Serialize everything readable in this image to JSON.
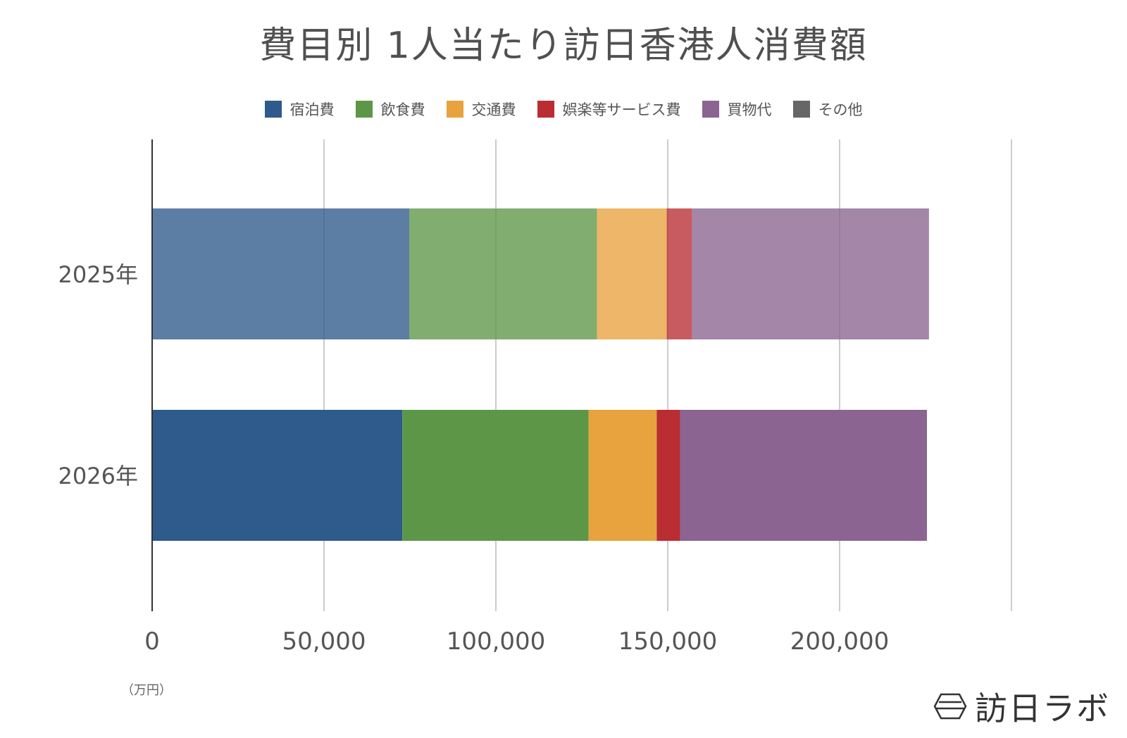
{
  "chart_data": {
    "type": "bar",
    "orientation": "horizontal",
    "stacked": true,
    "title": "費目別 1人当たり訪日香港人消費額",
    "categories": [
      "2025年",
      "2026年"
    ],
    "series": [
      {
        "name": "宿泊費",
        "values": [
          74800,
          72800
        ],
        "color": "#2e5a8c"
      },
      {
        "name": "飲食費",
        "values": [
          54600,
          54200
        ],
        "color": "#5e9648"
      },
      {
        "name": "交通費",
        "values": [
          20300,
          19800
        ],
        "color": "#e8a23e"
      },
      {
        "name": "娯楽等サービス費",
        "values": [
          7400,
          6800
        ],
        "color": "#b92d33"
      },
      {
        "name": "買物代",
        "values": [
          68900,
          71800
        ],
        "color": "#8b6491"
      },
      {
        "name": "その他",
        "values": [
          0,
          0
        ],
        "color": "#666666"
      }
    ],
    "x_ticks": [
      "0",
      "50,000",
      "100,000",
      "150,000",
      "200,000"
    ],
    "xlim": [
      0,
      250000
    ],
    "xlabel": "（万円）",
    "grid": true,
    "legend_position": "top"
  },
  "brand": {
    "name": "訪日ラボ"
  }
}
